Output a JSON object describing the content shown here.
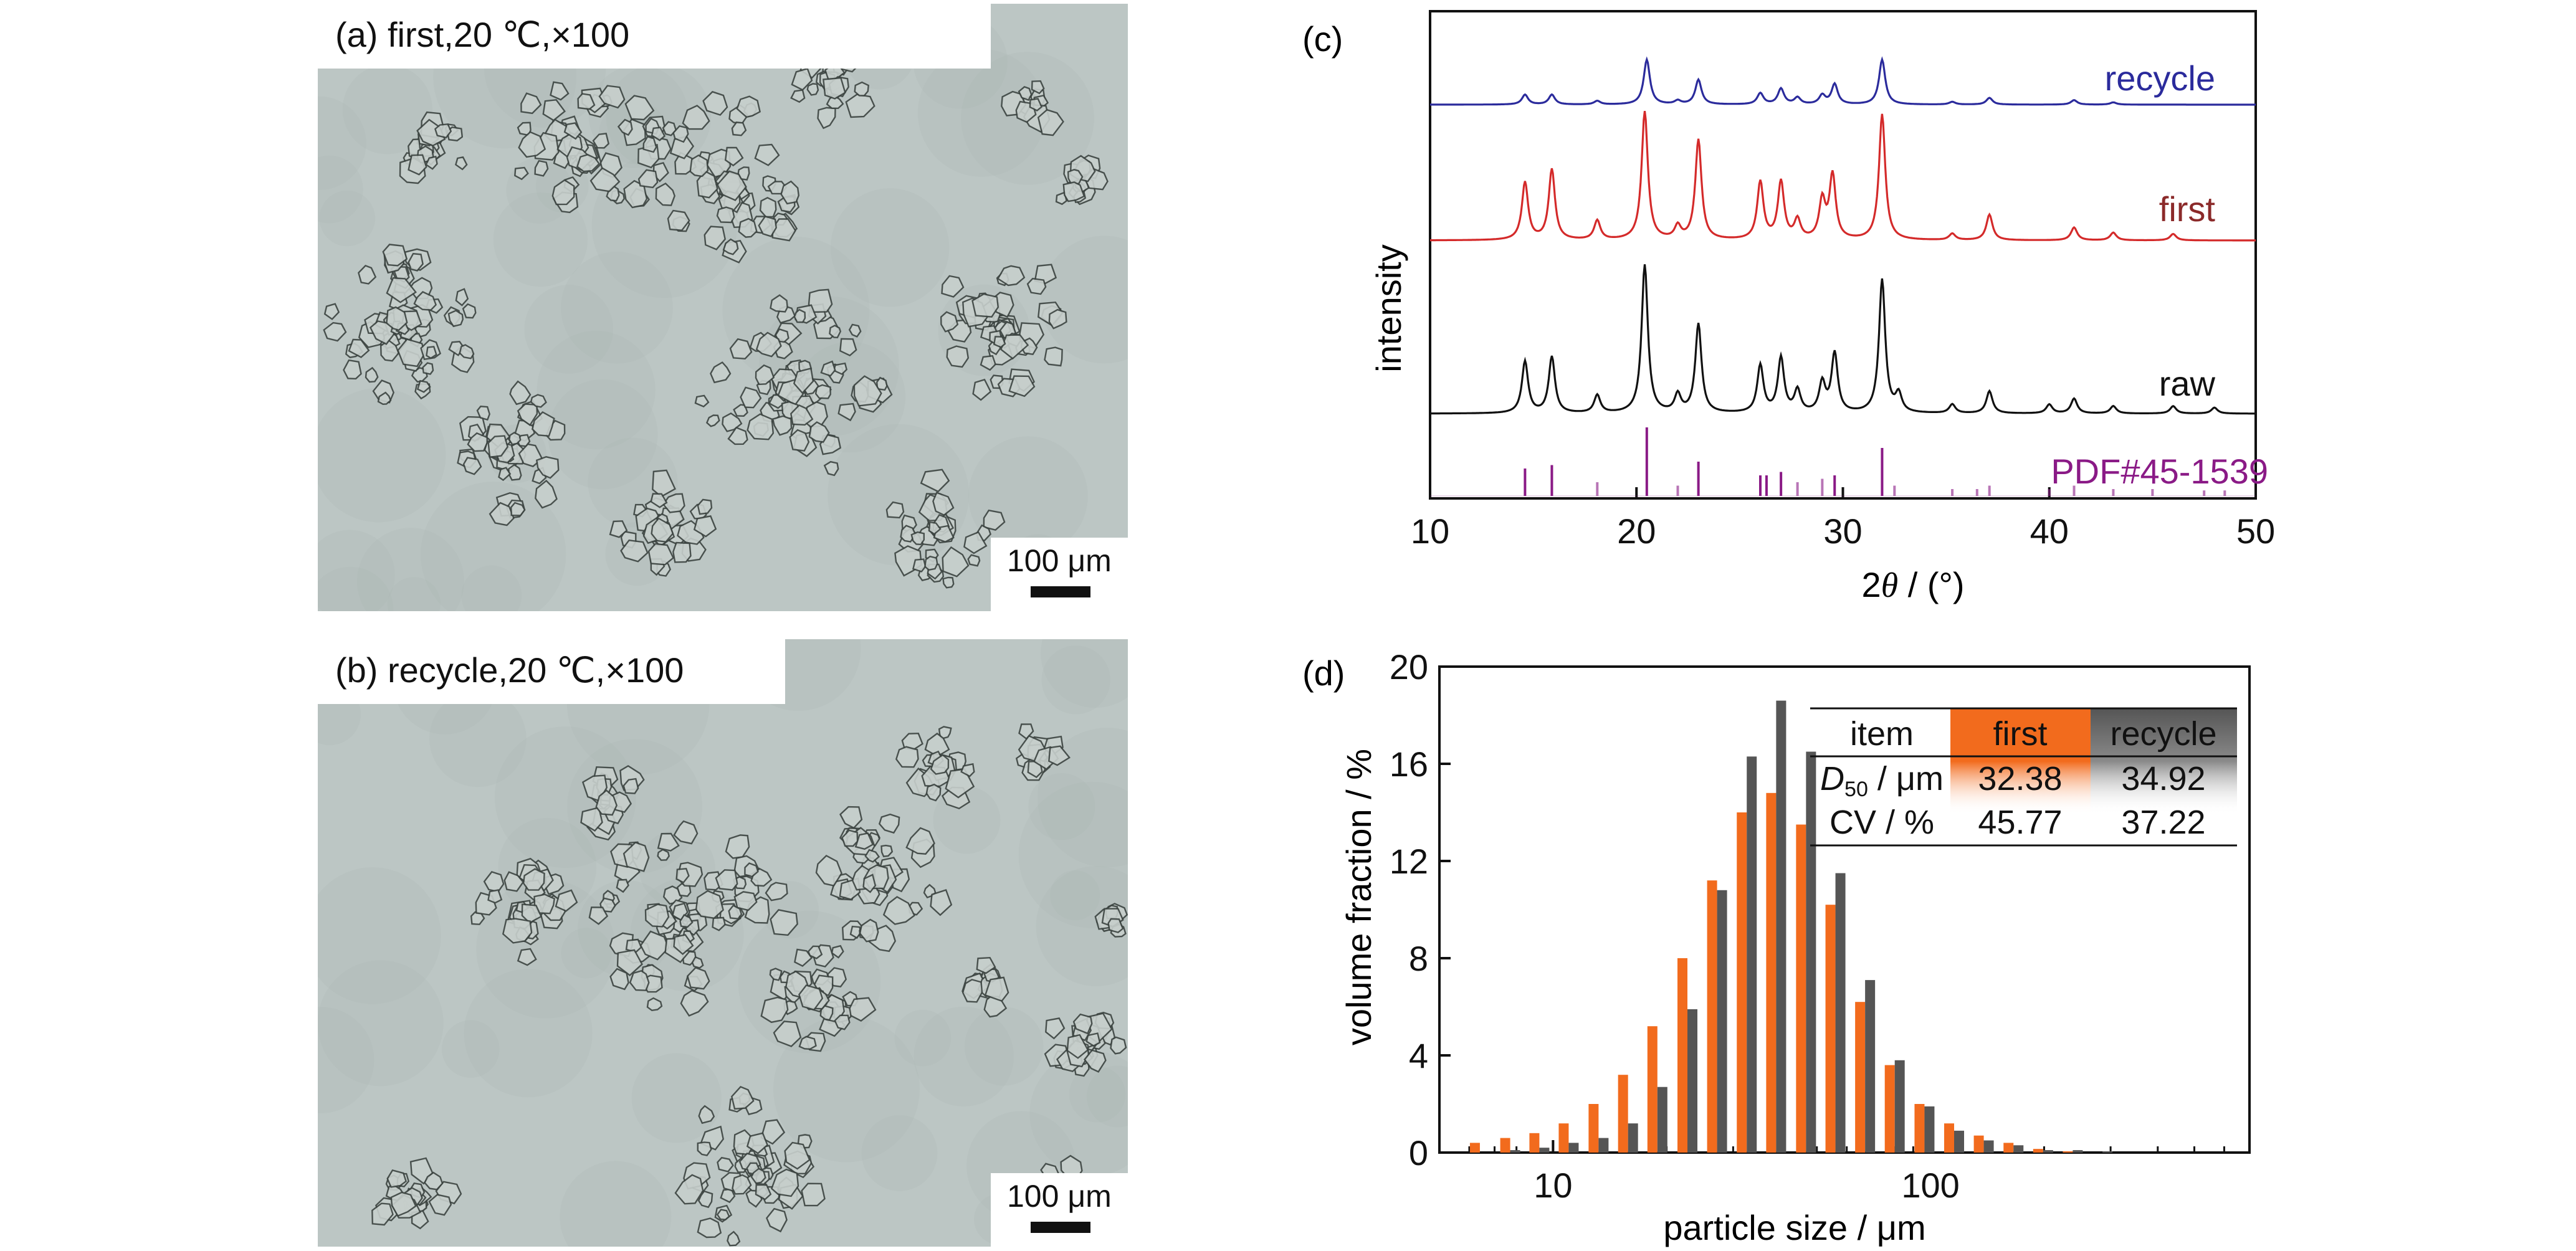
{
  "panel_a": {
    "label": "(a) first,20 ℃,×100",
    "scalebar_label": "100 μm"
  },
  "panel_b": {
    "label": "(b) recycle,20 ℃,×100",
    "scalebar_label": "100 μm"
  },
  "chart_data": [
    {
      "panel_label": "(c)",
      "type": "line",
      "xlabel": "2θ / (°)",
      "ylabel": "intensity",
      "xlim": [
        10,
        50
      ],
      "xticks": [
        "10",
        "20",
        "30",
        "40",
        "50"
      ],
      "grid": false,
      "colors": {
        "recycle": "#2b2b9c",
        "first": "#d42a2a",
        "raw": "#111111",
        "pdf": "#8a1a86",
        "axis": "#111111"
      },
      "series": [
        {
          "name": "recycle",
          "peaks": [
            [
              14.6,
              0.22
            ],
            [
              15.9,
              0.22
            ],
            [
              18.1,
              0.08
            ],
            [
              20.5,
              1.0
            ],
            [
              22.0,
              0.08
            ],
            [
              23.0,
              0.55
            ],
            [
              26.0,
              0.25
            ],
            [
              27.0,
              0.35
            ],
            [
              27.8,
              0.15
            ],
            [
              29.0,
              0.2
            ],
            [
              29.6,
              0.45
            ],
            [
              31.9,
              1.0
            ],
            [
              35.3,
              0.06
            ],
            [
              37.1,
              0.15
            ],
            [
              41.2,
              0.1
            ],
            [
              43.1,
              0.05
            ]
          ]
        },
        {
          "name": "first",
          "peaks": [
            [
              14.6,
              0.45
            ],
            [
              15.9,
              0.55
            ],
            [
              18.1,
              0.15
            ],
            [
              20.4,
              1.0
            ],
            [
              22.0,
              0.1
            ],
            [
              23.0,
              0.78
            ],
            [
              26.0,
              0.45
            ],
            [
              27.0,
              0.45
            ],
            [
              27.8,
              0.15
            ],
            [
              29.0,
              0.3
            ],
            [
              29.5,
              0.5
            ],
            [
              31.9,
              0.98
            ],
            [
              35.3,
              0.05
            ],
            [
              37.1,
              0.2
            ],
            [
              41.2,
              0.1
            ],
            [
              43.1,
              0.06
            ],
            [
              46.0,
              0.05
            ]
          ]
        },
        {
          "name": "raw",
          "peaks": [
            [
              14.6,
              0.35
            ],
            [
              15.9,
              0.38
            ],
            [
              18.1,
              0.12
            ],
            [
              20.4,
              1.0
            ],
            [
              22.0,
              0.12
            ],
            [
              23.0,
              0.6
            ],
            [
              26.0,
              0.32
            ],
            [
              27.0,
              0.37
            ],
            [
              27.8,
              0.15
            ],
            [
              29.0,
              0.2
            ],
            [
              29.6,
              0.4
            ],
            [
              31.9,
              0.9
            ],
            [
              32.7,
              0.12
            ],
            [
              35.3,
              0.06
            ],
            [
              37.1,
              0.15
            ],
            [
              40.0,
              0.06
            ],
            [
              41.2,
              0.1
            ],
            [
              43.1,
              0.05
            ],
            [
              46.0,
              0.05
            ],
            [
              48.0,
              0.04
            ]
          ]
        },
        {
          "name": "PDF#45-1539",
          "sticks": [
            [
              14.6,
              0.4
            ],
            [
              15.9,
              0.45
            ],
            [
              18.1,
              0.2
            ],
            [
              20.5,
              1.0
            ],
            [
              22.0,
              0.15
            ],
            [
              23.0,
              0.5
            ],
            [
              26.0,
              0.3
            ],
            [
              26.3,
              0.3
            ],
            [
              27.0,
              0.35
            ],
            [
              27.8,
              0.2
            ],
            [
              29.0,
              0.25
            ],
            [
              29.6,
              0.3
            ],
            [
              31.9,
              0.7
            ],
            [
              32.5,
              0.15
            ],
            [
              35.3,
              0.1
            ],
            [
              36.5,
              0.1
            ],
            [
              37.1,
              0.15
            ],
            [
              40.0,
              0.1
            ],
            [
              41.2,
              0.15
            ],
            [
              43.1,
              0.1
            ],
            [
              45.0,
              0.1
            ],
            [
              47.5,
              0.08
            ],
            [
              48.5,
              0.08
            ]
          ]
        }
      ],
      "series_labels": [
        "recycle",
        "first",
        "raw",
        "PDF#45-1539"
      ]
    },
    {
      "panel_label": "(d)",
      "type": "bar",
      "xlabel": "particle size / μm",
      "ylabel": "volume fraction / %",
      "xscale": "log",
      "xlim": [
        5,
        700
      ],
      "ylim": [
        0,
        20
      ],
      "xticks": [
        "10",
        "100"
      ],
      "yticks": [
        "0",
        "4",
        "8",
        "12",
        "16",
        "20"
      ],
      "grid": false,
      "colors": {
        "first": "#f26b1d",
        "recycle": "#555555",
        "axis": "#111111"
      },
      "x": [
        6.4,
        7.7,
        9.2,
        11.0,
        13.2,
        15.8,
        18.9,
        22.7,
        27.2,
        32.6,
        39.0,
        46.8,
        56.0,
        67.1,
        80.4,
        96.4,
        115.5,
        138.4,
        165.9,
        198.8,
        238.2,
        285.5,
        342.1,
        410.0,
        491.3,
        588.8
      ],
      "series": [
        {
          "name": "first",
          "values": [
            0.4,
            0.6,
            0.8,
            1.2,
            2.0,
            3.2,
            5.2,
            8.0,
            11.2,
            14.0,
            14.8,
            13.5,
            10.2,
            6.2,
            3.6,
            2.0,
            1.2,
            0.7,
            0.4,
            0.15,
            0.05,
            0.0,
            0.0,
            0.0,
            0.0,
            0.0
          ]
        },
        {
          "name": "recycle",
          "values": [
            0.0,
            0.1,
            0.2,
            0.4,
            0.6,
            1.2,
            2.7,
            5.9,
            10.8,
            16.3,
            18.6,
            16.5,
            11.5,
            7.1,
            3.8,
            1.9,
            0.9,
            0.5,
            0.3,
            0.1,
            0.1,
            0.05,
            0.0,
            0.0,
            0.0,
            0.0
          ]
        }
      ],
      "inset_table": {
        "headers": [
          "item",
          "first",
          "recycle"
        ],
        "rows": [
          {
            "item": "D50 / μm",
            "item_main": "D",
            "item_sub": "50",
            "item_rest": " / μm",
            "first": "32.38",
            "recycle": "34.92"
          },
          {
            "item": "CV / %",
            "first": "45.77",
            "recycle": "37.22"
          }
        ]
      }
    }
  ]
}
